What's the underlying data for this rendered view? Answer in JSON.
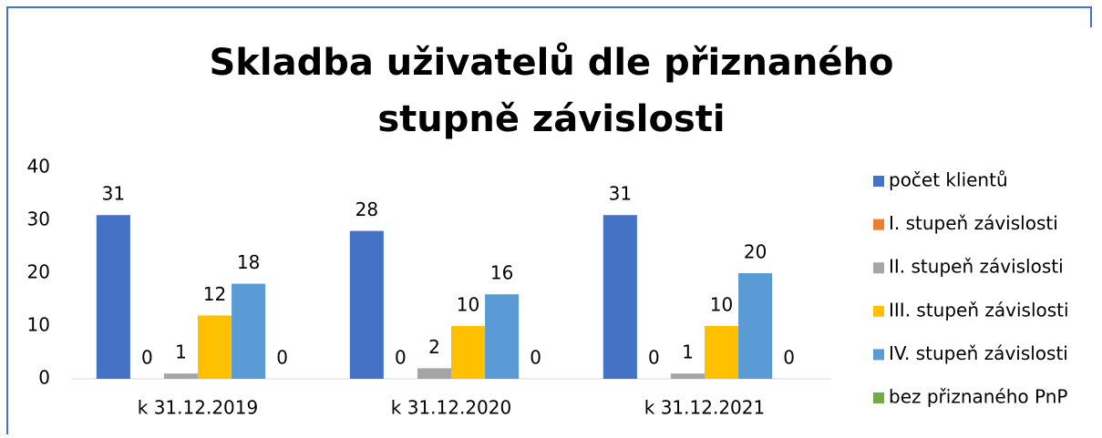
{
  "chart_data": {
    "type": "bar",
    "title": "Skladba uživatelů dle přiznaného stupně závislosti",
    "categories": [
      "k 31.12.2019",
      "k 31.12.2020",
      "k 31.12.2021"
    ],
    "series": [
      {
        "name": "počet klientů",
        "color": "#4472c4",
        "values": [
          31,
          28,
          31
        ]
      },
      {
        "name": "I. stupeň závislosti",
        "color": "#ed7d31",
        "values": [
          0,
          0,
          0
        ]
      },
      {
        "name": "II. stupeň závislosti",
        "color": "#a5a5a5",
        "values": [
          1,
          2,
          1
        ]
      },
      {
        "name": "III. stupeň závislosti",
        "color": "#ffc000",
        "values": [
          12,
          10,
          10
        ]
      },
      {
        "name": "IV. stupeň závislosti",
        "color": "#5b9bd5",
        "values": [
          18,
          16,
          20
        ]
      },
      {
        "name": "bez přiznaného PnP",
        "color": "#70ad47",
        "values": [
          0,
          0,
          0
        ]
      }
    ],
    "ylim": [
      0,
      40
    ],
    "yticks": [
      0,
      10,
      20,
      30,
      40
    ],
    "grid": false,
    "legend": "right"
  }
}
